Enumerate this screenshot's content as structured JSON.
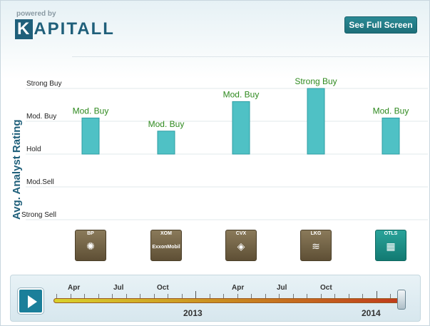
{
  "header": {
    "powered_by": "powered by",
    "logo_k": "K",
    "logo_rest": "APITALL",
    "full_screen_label": "See Full Screen"
  },
  "chart_data": {
    "type": "bar",
    "ylabel": "Avg. Analyst Rating",
    "y_ticks": [
      "Strong Sell",
      "Mod.Sell",
      "Hold",
      "Mod. Buy",
      "Strong Buy"
    ],
    "ylim": [
      1,
      5
    ],
    "grid": true,
    "bar_color": "#4fc1c5",
    "categories": [
      "BP",
      "XOM",
      "CVX",
      "LKG",
      "OTLS"
    ],
    "values": [
      4.1,
      3.7,
      4.6,
      5.0,
      4.1
    ],
    "data_labels": [
      "Mod. Buy",
      "Mod. Buy",
      "Mod. Buy",
      "Strong Buy",
      "Mod. Buy"
    ]
  },
  "companies": [
    {
      "ticker": "BP",
      "glyph": "✺"
    },
    {
      "ticker": "XOM",
      "glyph": "ExxonMobil"
    },
    {
      "ticker": "CVX",
      "glyph": "◈"
    },
    {
      "ticker": "LKG",
      "glyph": "≋"
    },
    {
      "ticker": "OTLS",
      "glyph": "▦"
    }
  ],
  "timeline": {
    "months": [
      "Apr",
      "Jul",
      "Oct",
      "Apr",
      "Jul",
      "Oct"
    ],
    "years": [
      "2013",
      "2014"
    ]
  }
}
